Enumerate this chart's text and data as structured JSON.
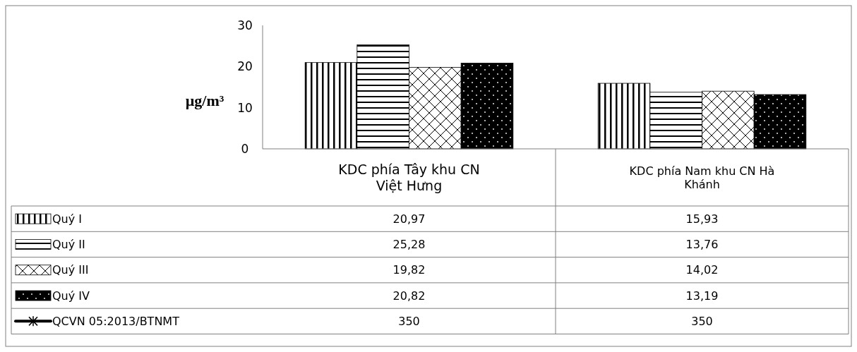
{
  "chart_data": {
    "type": "bar",
    "ylabel": "µg/m³",
    "categories": [
      "KDC phía Tây khu CN Việt Hưng",
      "KDC phía Nam khu CN Hà Khánh"
    ],
    "series": [
      {
        "name": "Quý I",
        "color": "#000000",
        "values": [
          20.97,
          15.93
        ],
        "value_labels": [
          "20,97",
          "15,93"
        ]
      },
      {
        "name": "Quý II",
        "color": "#000000",
        "values": [
          25.28,
          13.76
        ],
        "value_labels": [
          "25,28",
          "13,76"
        ]
      },
      {
        "name": "Quý III",
        "color": "#000000",
        "values": [
          19.82,
          14.02
        ],
        "value_labels": [
          "19,82",
          "14,02"
        ]
      },
      {
        "name": "Quý IV",
        "color": "#000000",
        "values": [
          20.82,
          13.19
        ],
        "value_labels": [
          "20,82",
          "13,19"
        ]
      },
      {
        "name": "QCVN 05:2013/BTNMT",
        "type": "line",
        "color": "#000000",
        "marker": "star",
        "values": [
          null,
          null
        ],
        "value_labels": [
          "350",
          "350"
        ]
      }
    ],
    "ylim": [
      0,
      30
    ],
    "yticks": [
      0,
      10,
      20,
      30
    ],
    "grid": false,
    "legend": "bottom"
  }
}
